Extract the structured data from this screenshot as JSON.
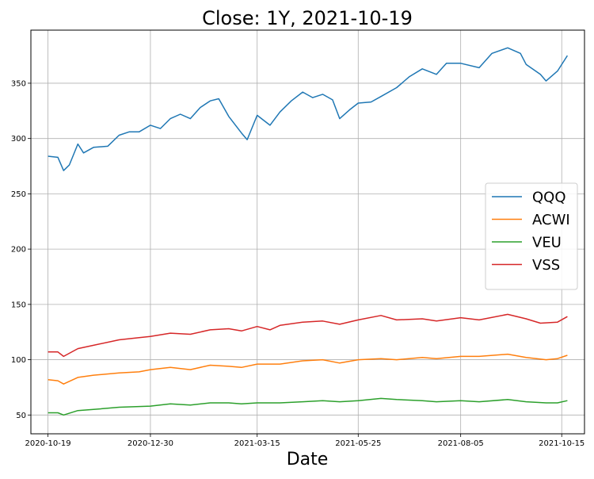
{
  "chart_data": {
    "type": "line",
    "title": "Close: 1Y, 2021-10-19",
    "xlabel": "Date",
    "ylabel": "",
    "xlim": [
      "2020-10-07",
      "2021-10-31"
    ],
    "ylim": [
      33,
      398
    ],
    "grid": true,
    "legend_position": "center-right",
    "x_ticks": [
      "2020-10-19",
      "2020-12-30",
      "2021-03-15",
      "2021-05-25",
      "2021-08-05",
      "2021-10-15"
    ],
    "y_ticks": [
      50,
      100,
      150,
      200,
      250,
      300,
      350
    ],
    "series": [
      {
        "name": "QQQ",
        "color": "#1f77b4",
        "points": [
          [
            "2020-10-19",
            284
          ],
          [
            "2020-10-26",
            283
          ],
          [
            "2020-10-30",
            271
          ],
          [
            "2020-11-03",
            276
          ],
          [
            "2020-11-09",
            295
          ],
          [
            "2020-11-13",
            287
          ],
          [
            "2020-11-20",
            292
          ],
          [
            "2020-11-30",
            293
          ],
          [
            "2020-12-08",
            303
          ],
          [
            "2020-12-15",
            306
          ],
          [
            "2020-12-22",
            306
          ],
          [
            "2020-12-30",
            312
          ],
          [
            "2021-01-06",
            309
          ],
          [
            "2021-01-13",
            318
          ],
          [
            "2021-01-20",
            322
          ],
          [
            "2021-01-27",
            318
          ],
          [
            "2021-02-03",
            328
          ],
          [
            "2021-02-10",
            334
          ],
          [
            "2021-02-16",
            336
          ],
          [
            "2021-02-23",
            320
          ],
          [
            "2021-03-04",
            305
          ],
          [
            "2021-03-08",
            299
          ],
          [
            "2021-03-15",
            321
          ],
          [
            "2021-03-24",
            312
          ],
          [
            "2021-03-31",
            324
          ],
          [
            "2021-04-08",
            334
          ],
          [
            "2021-04-16",
            342
          ],
          [
            "2021-04-23",
            337
          ],
          [
            "2021-04-30",
            340
          ],
          [
            "2021-05-07",
            335
          ],
          [
            "2021-05-12",
            318
          ],
          [
            "2021-05-19",
            326
          ],
          [
            "2021-05-25",
            332
          ],
          [
            "2021-06-03",
            333
          ],
          [
            "2021-06-10",
            338
          ],
          [
            "2021-06-21",
            346
          ],
          [
            "2021-06-30",
            356
          ],
          [
            "2021-07-09",
            363
          ],
          [
            "2021-07-19",
            358
          ],
          [
            "2021-07-26",
            368
          ],
          [
            "2021-08-05",
            368
          ],
          [
            "2021-08-18",
            364
          ],
          [
            "2021-08-27",
            377
          ],
          [
            "2021-09-07",
            382
          ],
          [
            "2021-09-16",
            377
          ],
          [
            "2021-09-20",
            367
          ],
          [
            "2021-09-30",
            358
          ],
          [
            "2021-10-04",
            352
          ],
          [
            "2021-10-12",
            361
          ],
          [
            "2021-10-19",
            375
          ]
        ]
      },
      {
        "name": "ACWI",
        "color": "#ff7f0e",
        "points": [
          [
            "2020-10-19",
            82
          ],
          [
            "2020-10-26",
            81
          ],
          [
            "2020-10-30",
            78
          ],
          [
            "2020-11-09",
            84
          ],
          [
            "2020-11-20",
            86
          ],
          [
            "2020-12-08",
            88
          ],
          [
            "2020-12-22",
            89
          ],
          [
            "2020-12-30",
            91
          ],
          [
            "2021-01-13",
            93
          ],
          [
            "2021-01-27",
            91
          ],
          [
            "2021-02-10",
            95
          ],
          [
            "2021-02-23",
            94
          ],
          [
            "2021-03-04",
            93
          ],
          [
            "2021-03-15",
            96
          ],
          [
            "2021-03-31",
            96
          ],
          [
            "2021-04-16",
            99
          ],
          [
            "2021-04-30",
            100
          ],
          [
            "2021-05-12",
            97
          ],
          [
            "2021-05-25",
            100
          ],
          [
            "2021-06-10",
            101
          ],
          [
            "2021-06-21",
            100
          ],
          [
            "2021-07-09",
            102
          ],
          [
            "2021-07-19",
            101
          ],
          [
            "2021-08-05",
            103
          ],
          [
            "2021-08-18",
            103
          ],
          [
            "2021-09-07",
            105
          ],
          [
            "2021-09-20",
            102
          ],
          [
            "2021-10-04",
            100
          ],
          [
            "2021-10-12",
            101
          ],
          [
            "2021-10-19",
            104
          ]
        ]
      },
      {
        "name": "VEU",
        "color": "#2ca02c",
        "points": [
          [
            "2020-10-19",
            52
          ],
          [
            "2020-10-26",
            52
          ],
          [
            "2020-10-30",
            50
          ],
          [
            "2020-11-09",
            54
          ],
          [
            "2020-11-20",
            55
          ],
          [
            "2020-12-08",
            57
          ],
          [
            "2020-12-30",
            58
          ],
          [
            "2021-01-13",
            60
          ],
          [
            "2021-01-27",
            59
          ],
          [
            "2021-02-10",
            61
          ],
          [
            "2021-02-23",
            61
          ],
          [
            "2021-03-04",
            60
          ],
          [
            "2021-03-15",
            61
          ],
          [
            "2021-03-31",
            61
          ],
          [
            "2021-04-16",
            62
          ],
          [
            "2021-04-30",
            63
          ],
          [
            "2021-05-12",
            62
          ],
          [
            "2021-05-25",
            63
          ],
          [
            "2021-06-10",
            65
          ],
          [
            "2021-06-21",
            64
          ],
          [
            "2021-07-09",
            63
          ],
          [
            "2021-07-19",
            62
          ],
          [
            "2021-08-05",
            63
          ],
          [
            "2021-08-18",
            62
          ],
          [
            "2021-09-07",
            64
          ],
          [
            "2021-09-20",
            62
          ],
          [
            "2021-10-04",
            61
          ],
          [
            "2021-10-12",
            61
          ],
          [
            "2021-10-19",
            63
          ]
        ]
      },
      {
        "name": "VSS",
        "color": "#d62728",
        "points": [
          [
            "2020-10-19",
            107
          ],
          [
            "2020-10-26",
            107
          ],
          [
            "2020-10-30",
            103
          ],
          [
            "2020-11-09",
            110
          ],
          [
            "2020-11-20",
            113
          ],
          [
            "2020-12-08",
            118
          ],
          [
            "2020-12-22",
            120
          ],
          [
            "2020-12-30",
            121
          ],
          [
            "2021-01-13",
            124
          ],
          [
            "2021-01-27",
            123
          ],
          [
            "2021-02-10",
            127
          ],
          [
            "2021-02-23",
            128
          ],
          [
            "2021-03-04",
            126
          ],
          [
            "2021-03-15",
            130
          ],
          [
            "2021-03-24",
            127
          ],
          [
            "2021-03-31",
            131
          ],
          [
            "2021-04-16",
            134
          ],
          [
            "2021-04-30",
            135
          ],
          [
            "2021-05-12",
            132
          ],
          [
            "2021-05-25",
            136
          ],
          [
            "2021-06-10",
            140
          ],
          [
            "2021-06-21",
            136
          ],
          [
            "2021-07-09",
            137
          ],
          [
            "2021-07-19",
            135
          ],
          [
            "2021-08-05",
            138
          ],
          [
            "2021-08-18",
            136
          ],
          [
            "2021-09-07",
            141
          ],
          [
            "2021-09-20",
            137
          ],
          [
            "2021-09-30",
            133
          ],
          [
            "2021-10-12",
            134
          ],
          [
            "2021-10-19",
            139
          ]
        ]
      }
    ]
  }
}
